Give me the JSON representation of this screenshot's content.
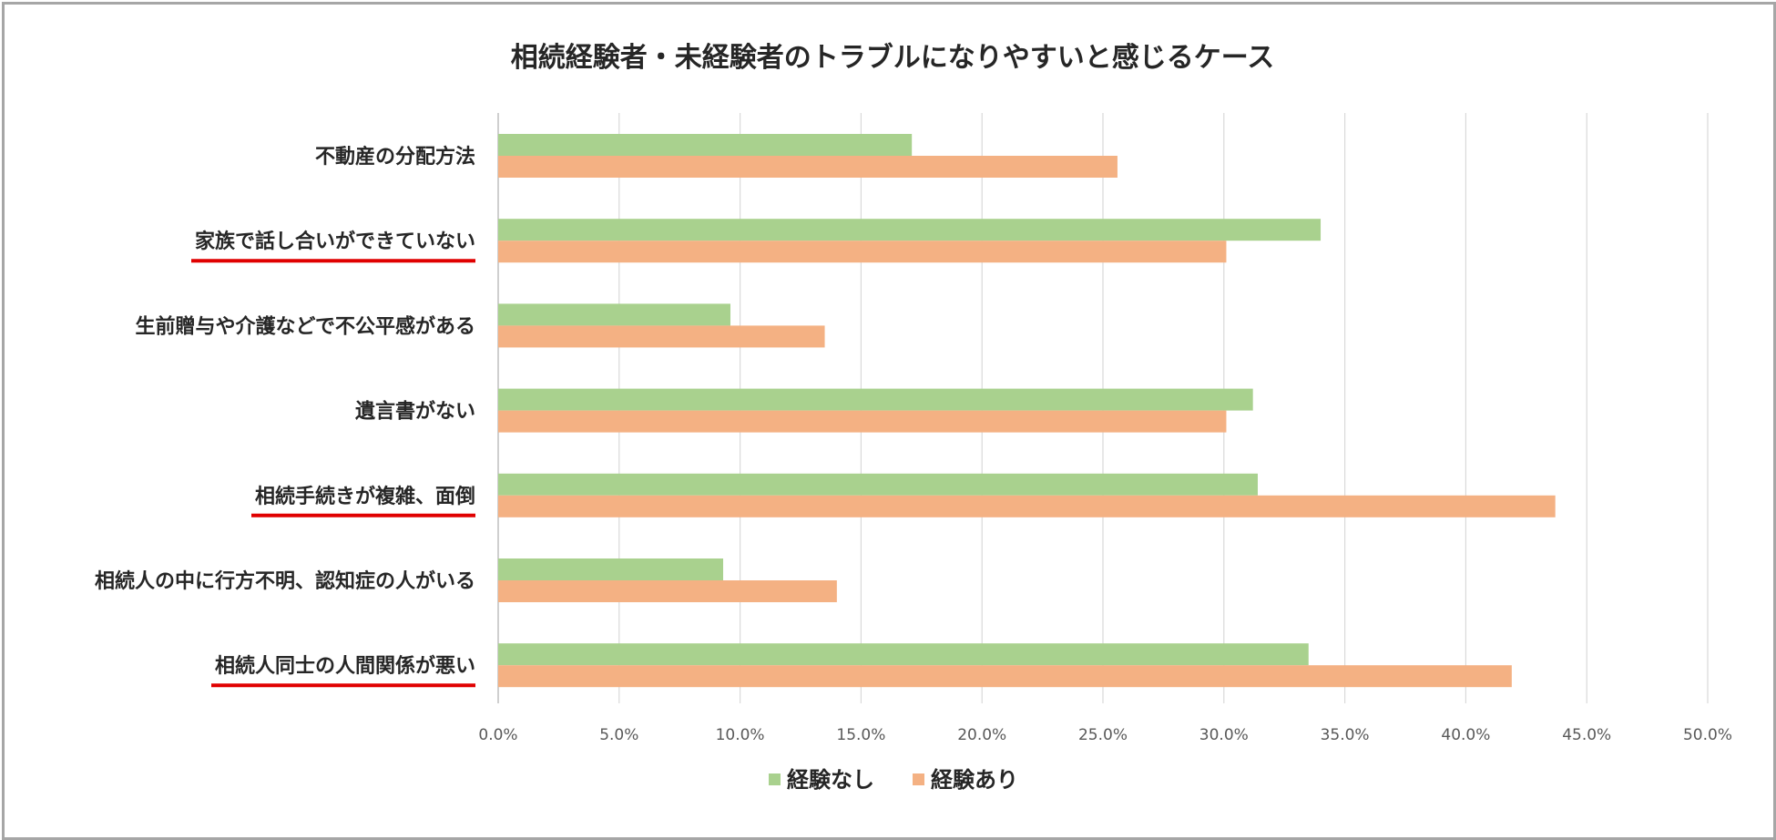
{
  "chart_data": {
    "type": "bar",
    "orientation": "horizontal",
    "title": "相続経験者・未経験者のトラブルになりやすいと感じるケース",
    "categories": [
      "不動産の分配方法",
      "家族で話し合いができていない",
      "生前贈与や介護などで不公平感がある",
      "遺言書がない",
      "相続手続きが複雑、面倒",
      "相続人の中に行方不明、認知症の人がいる",
      "相続人同士の人間関係が悪い"
    ],
    "underlined": [
      false,
      true,
      false,
      false,
      true,
      false,
      true
    ],
    "series": [
      {
        "name": "経験なし",
        "color": "#a9d18e",
        "values": [
          17.1,
          34.0,
          9.6,
          31.2,
          31.4,
          9.3,
          33.5
        ]
      },
      {
        "name": "経験あり",
        "color": "#f4b183",
        "values": [
          25.6,
          30.1,
          13.5,
          30.1,
          43.7,
          14.0,
          41.9
        ]
      }
    ],
    "xlim": [
      0,
      50
    ],
    "xticks": [
      "0.0%",
      "5.0%",
      "10.0%",
      "15.0%",
      "20.0%",
      "25.0%",
      "30.0%",
      "35.0%",
      "40.0%",
      "45.0%",
      "50.0%"
    ],
    "grid": true,
    "legend_position": "bottom",
    "underline_color": "#e00000"
  }
}
